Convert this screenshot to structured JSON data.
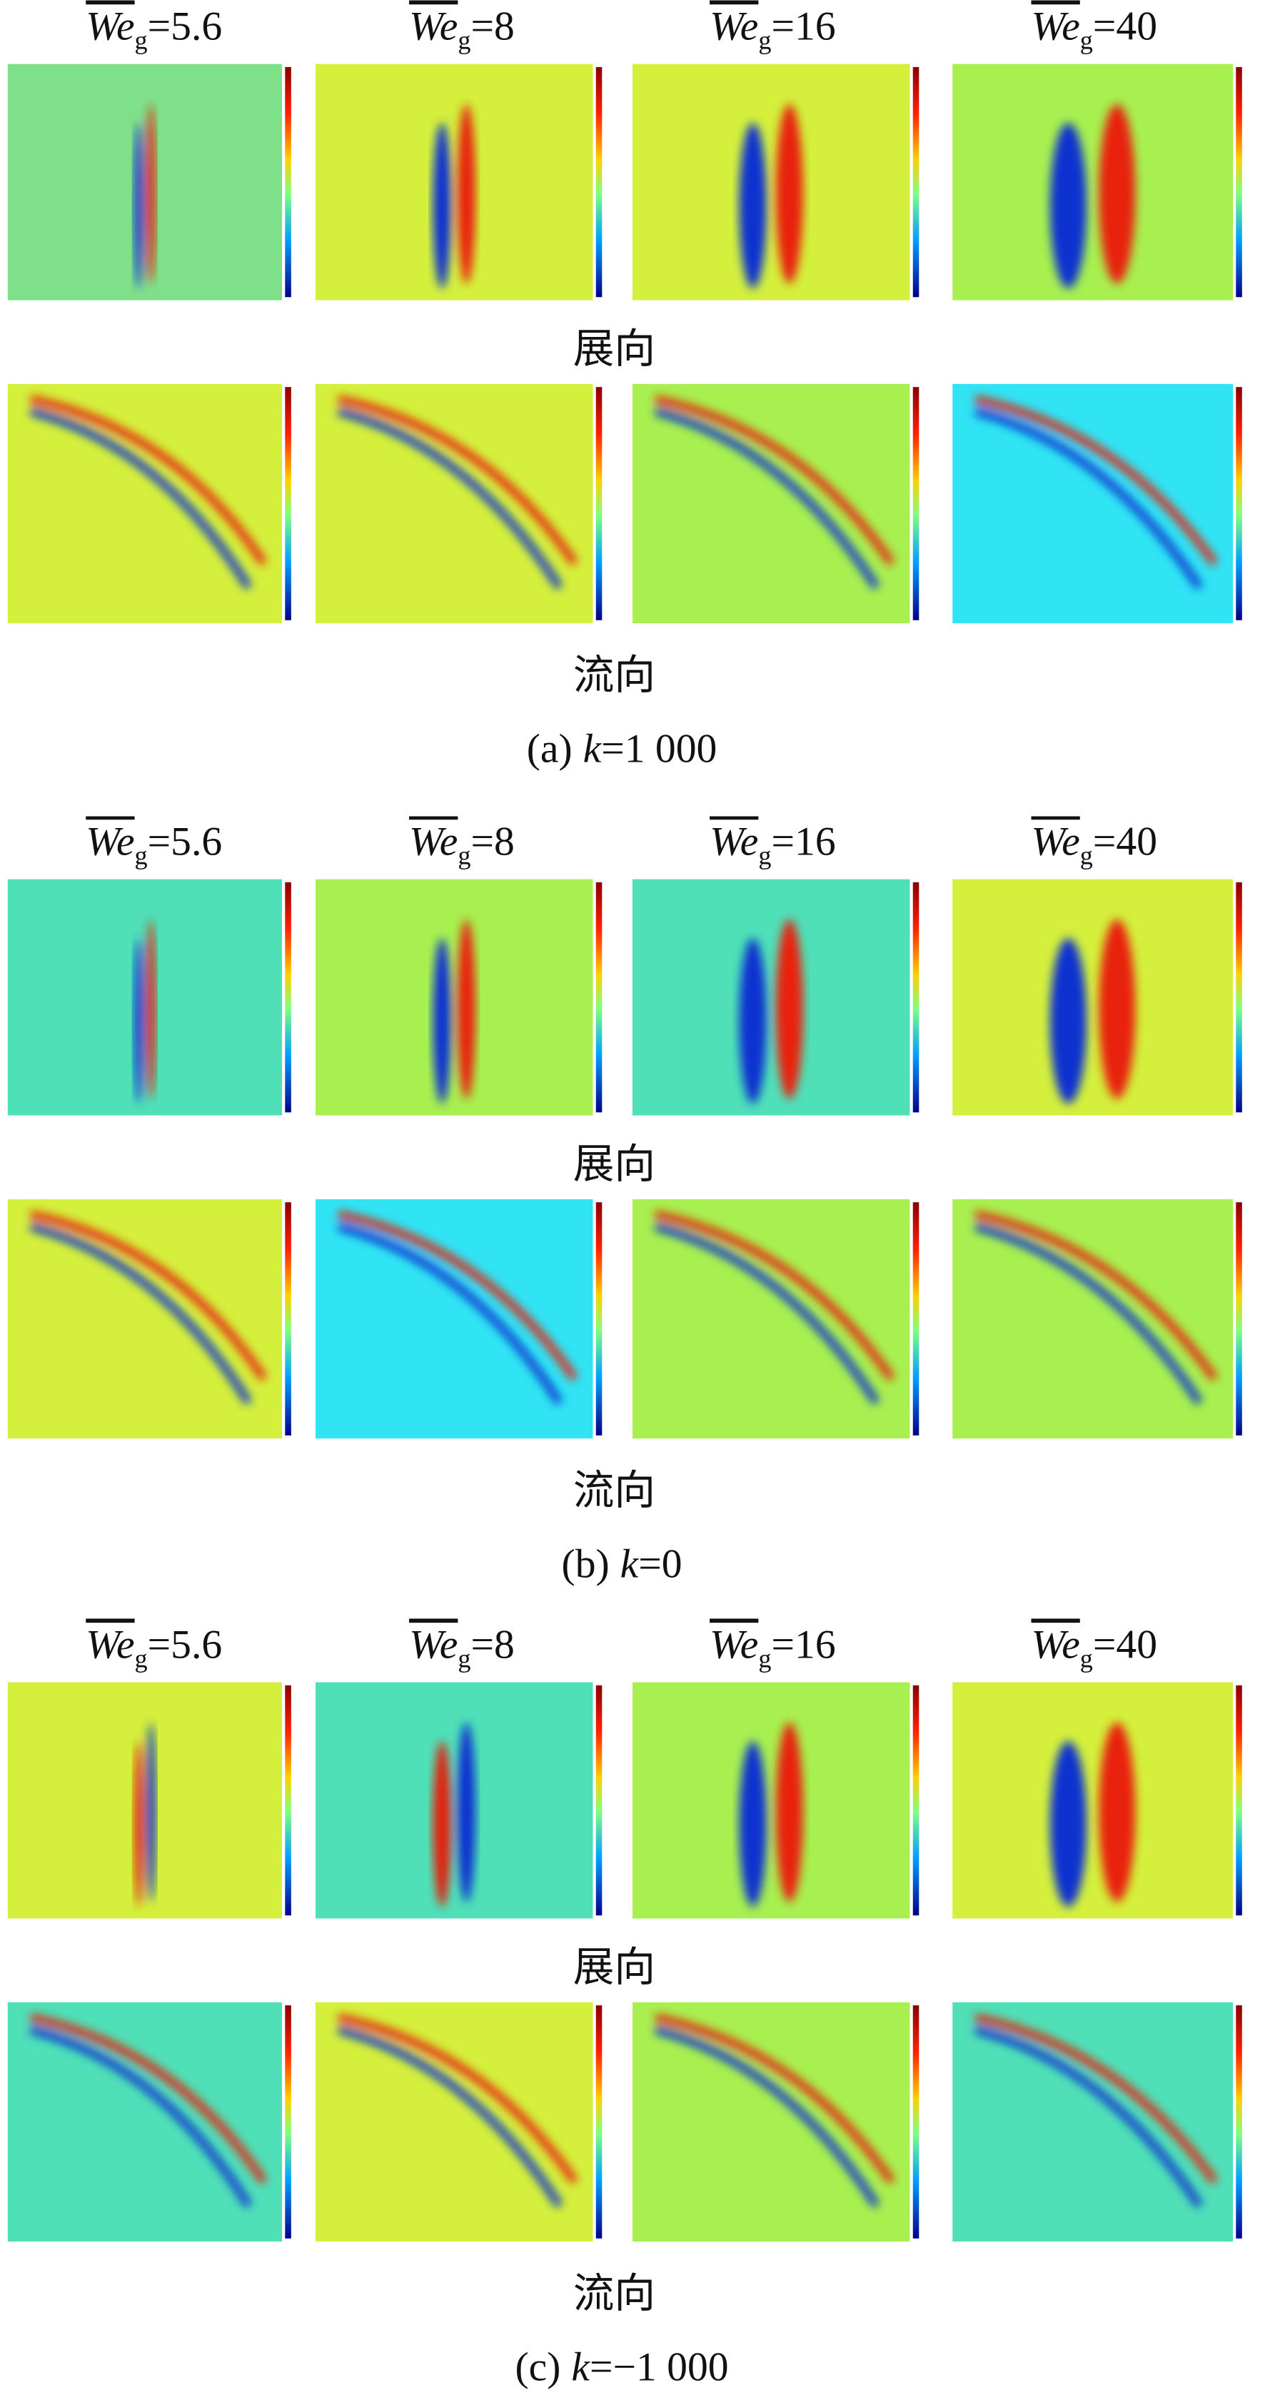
{
  "symbol": "We",
  "subscript": "g",
  "groups": [
    {
      "columns": [
        "=5.6",
        "=8",
        "=16",
        "=40"
      ],
      "rows": [
        "展向",
        "流向"
      ],
      "caption": {
        "label": "(a)",
        "var": "k",
        "value": "=1 000"
      }
    },
    {
      "columns": [
        "=5.6",
        "=8",
        "=16",
        "=40"
      ],
      "rows": [
        "展向",
        "流向"
      ],
      "caption": {
        "label": "(b)",
        "var": "k",
        "value": "=0"
      }
    },
    {
      "columns": [
        "=5.6",
        "=8",
        "=16",
        "=40"
      ],
      "rows": [
        "展向",
        "流向"
      ],
      "caption": {
        "label": "(c)",
        "var": "k",
        "value": "=−1 000"
      }
    }
  ]
}
